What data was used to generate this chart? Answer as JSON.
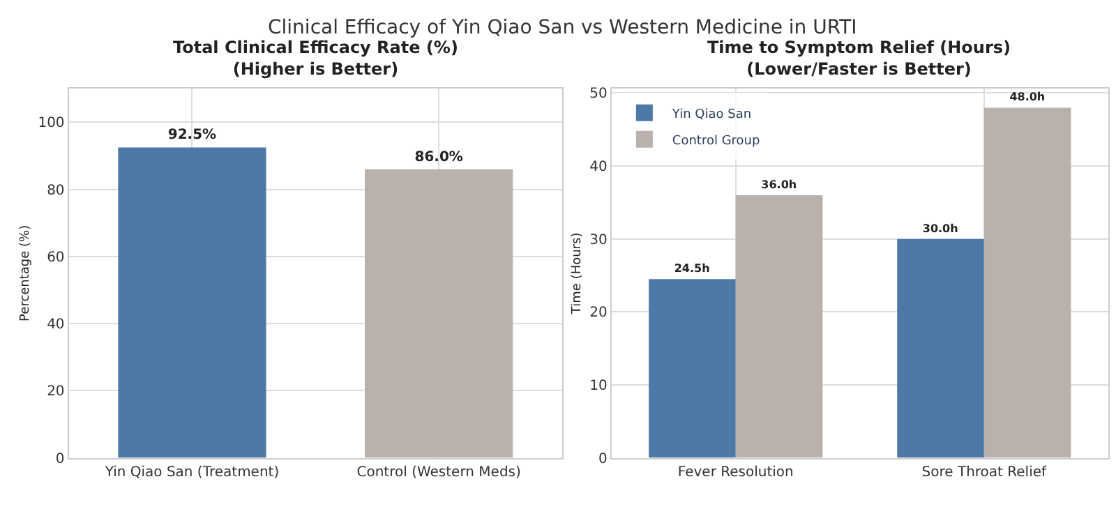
{
  "chart_data": [
    {
      "type": "bar",
      "title": "Total Clinical Efficacy Rate (%)\n(Higher is Better)",
      "ylabel": "Percentage (%)",
      "annotations": [
        "Clinical Efficacy of Yin Qiao San vs Western Medicine in URTI"
      ],
      "categories": [
        "Yin Qiao San (Treatment)",
        "Control (Western Meds)"
      ],
      "values": [
        92.5,
        86.0
      ],
      "colors": [
        "#4e79a7",
        "#bab0ac"
      ],
      "value_labels": [
        "92.5%",
        "86.0%"
      ],
      "ylim": [
        0,
        110
      ],
      "yticks": [
        0,
        20,
        40,
        60,
        80,
        100
      ],
      "grid": true
    },
    {
      "type": "bar",
      "title": "Time to Symptom Relief (Hours)\n(Lower/Faster is Better)",
      "ylabel": "Time (Hours)",
      "categories": [
        "Fever Resolution",
        "Sore Throat Relief"
      ],
      "series": [
        {
          "name": "Yin Qiao San",
          "color": "#4e79a7",
          "values": [
            24.5,
            30.0
          ],
          "value_labels": [
            "24.5h",
            "30.0h"
          ]
        },
        {
          "name": "Control Group",
          "color": "#bab0ac",
          "values": [
            36.0,
            48.0
          ],
          "value_labels": [
            "36.0h",
            "48.0h"
          ]
        }
      ],
      "ylim": [
        0,
        50.6
      ],
      "yticks": [
        0,
        10,
        20,
        30,
        40,
        50
      ],
      "grid": true,
      "legend": "top left"
    }
  ]
}
